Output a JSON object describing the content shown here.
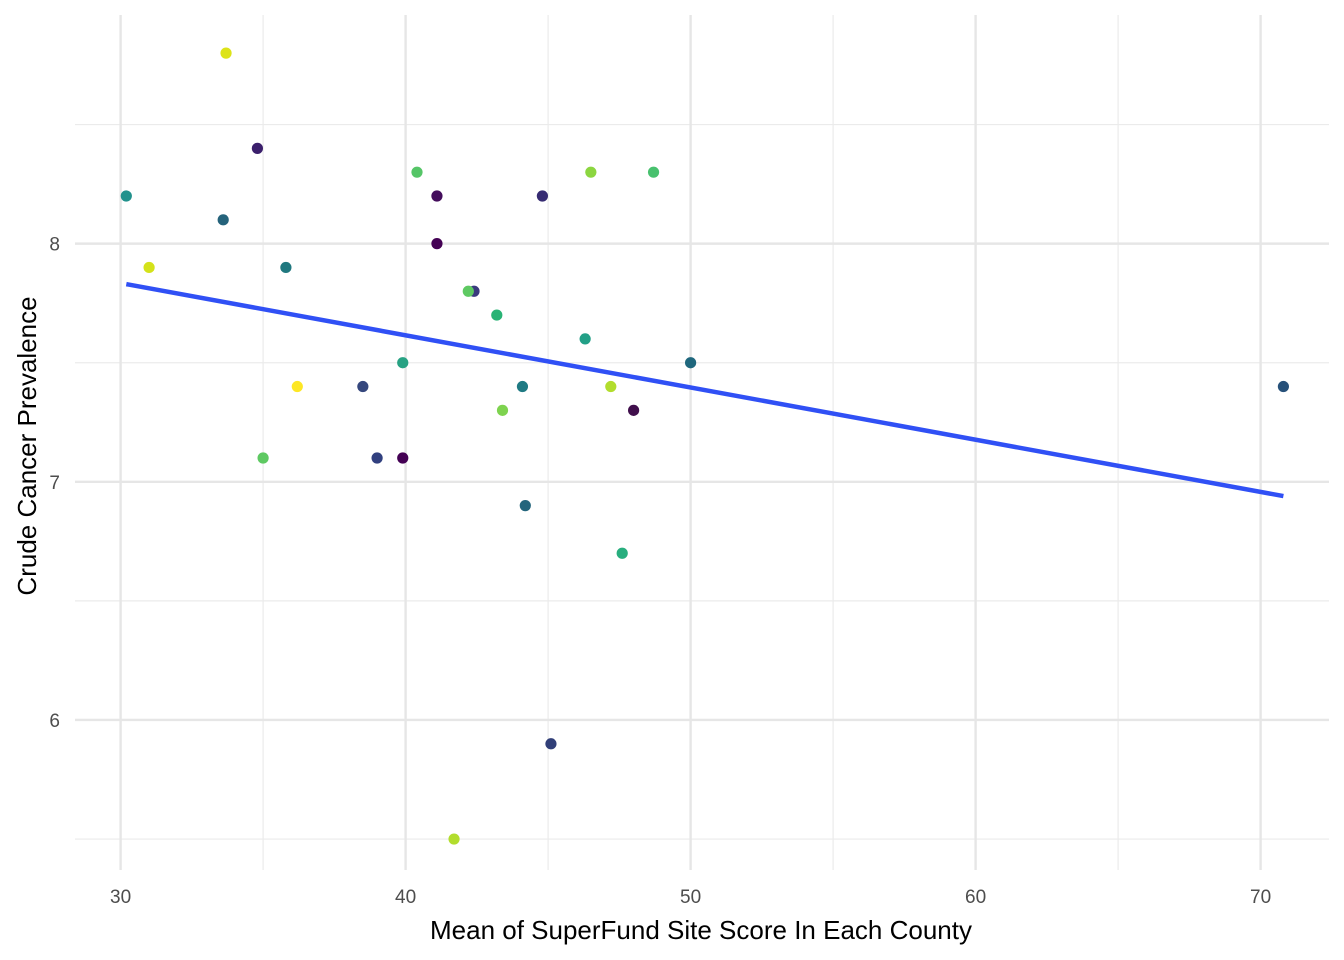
{
  "chart_data": {
    "type": "scatter",
    "title": "",
    "xlabel": "Mean of SuperFund Site Score In Each County",
    "ylabel": "Crude Cancer Prevalence",
    "xlim": [
      28.4,
      72.4
    ],
    "ylim": [
      5.37,
      8.96
    ],
    "x_ticks": [
      30,
      40,
      50,
      60,
      70
    ],
    "y_ticks": [
      6,
      7,
      8
    ],
    "x_minor": [
      35,
      45,
      55,
      65
    ],
    "y_minor": [
      5.5,
      6.5,
      7.5,
      8.5
    ],
    "grid": true,
    "legend": "none",
    "points": [
      {
        "x": 33.7,
        "y": 8.8,
        "color": "#dde318"
      },
      {
        "x": 34.8,
        "y": 8.4,
        "color": "#3b1f6c"
      },
      {
        "x": 30.2,
        "y": 8.2,
        "color": "#21918c"
      },
      {
        "x": 33.6,
        "y": 8.1,
        "color": "#25637b"
      },
      {
        "x": 31.0,
        "y": 7.9,
        "color": "#d4e21a"
      },
      {
        "x": 35.8,
        "y": 7.9,
        "color": "#20787f"
      },
      {
        "x": 36.2,
        "y": 7.4,
        "color": "#fde725"
      },
      {
        "x": 38.5,
        "y": 7.4,
        "color": "#35477d"
      },
      {
        "x": 35.0,
        "y": 7.1,
        "color": "#5ec962"
      },
      {
        "x": 39.0,
        "y": 7.1,
        "color": "#31407f"
      },
      {
        "x": 39.9,
        "y": 7.1,
        "color": "#440154"
      },
      {
        "x": 39.9,
        "y": 7.5,
        "color": "#27a283"
      },
      {
        "x": 40.4,
        "y": 8.3,
        "color": "#55c567"
      },
      {
        "x": 41.1,
        "y": 8.2,
        "color": "#440d5c"
      },
      {
        "x": 41.1,
        "y": 8.0,
        "color": "#440154"
      },
      {
        "x": 42.4,
        "y": 7.8,
        "color": "#3a3a7e"
      },
      {
        "x": 42.2,
        "y": 7.8,
        "color": "#5ec962"
      },
      {
        "x": 43.2,
        "y": 7.7,
        "color": "#29b375"
      },
      {
        "x": 43.4,
        "y": 7.3,
        "color": "#7ed34f"
      },
      {
        "x": 41.7,
        "y": 5.5,
        "color": "#b2dd2d"
      },
      {
        "x": 44.1,
        "y": 7.4,
        "color": "#1f7a83"
      },
      {
        "x": 44.2,
        "y": 6.9,
        "color": "#23657c"
      },
      {
        "x": 44.8,
        "y": 8.2,
        "color": "#362b72"
      },
      {
        "x": 45.1,
        "y": 5.9,
        "color": "#313f78"
      },
      {
        "x": 46.5,
        "y": 8.3,
        "color": "#8cd640"
      },
      {
        "x": 46.3,
        "y": 7.6,
        "color": "#23a087"
      },
      {
        "x": 47.2,
        "y": 7.4,
        "color": "#b2dd2d"
      },
      {
        "x": 47.6,
        "y": 6.7,
        "color": "#28ae7e"
      },
      {
        "x": 48.0,
        "y": 7.3,
        "color": "#400f4c"
      },
      {
        "x": 48.7,
        "y": 8.3,
        "color": "#48c16e"
      },
      {
        "x": 50.0,
        "y": 7.5,
        "color": "#1f677d"
      },
      {
        "x": 70.8,
        "y": 7.4,
        "color": "#27517a"
      }
    ],
    "trend_line": {
      "x": [
        30.2,
        70.8
      ],
      "y": [
        7.83,
        6.94
      ],
      "color": "#3050f5"
    }
  }
}
